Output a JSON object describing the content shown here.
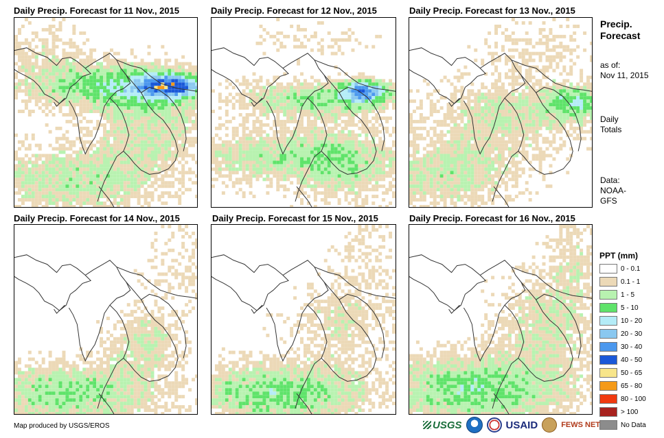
{
  "panels": [
    {
      "title": "Daily Precip. Forecast for 11 Nov., 2015"
    },
    {
      "title": "Daily Precip. Forecast for 12 Nov., 2015"
    },
    {
      "title": "Daily Precip. Forecast for 13 Nov., 2015"
    },
    {
      "title": "Daily Precip. Forecast for 14 Nov., 2015"
    },
    {
      "title": "Daily Precip. Forecast for 15 Nov., 2015"
    },
    {
      "title": "Daily Precip. Forecast for 16 Nov., 2015"
    }
  ],
  "side": {
    "title_line1": "Precip.",
    "title_line2": "Forecast",
    "asof_line1": "as of:",
    "asof_line2": "Nov 11, 2015",
    "totals_line1": "Daily",
    "totals_line2": "Totals",
    "data_line1": "Data:",
    "data_line2": "NOAA-",
    "data_line3": "GFS"
  },
  "legend": {
    "title": "PPT (mm)",
    "items": [
      {
        "label": "0 - 0.1",
        "color": "#ffffff"
      },
      {
        "label": "0.1 - 1",
        "color": "#ecd9b7"
      },
      {
        "label": "1 - 5",
        "color": "#b8f2b0"
      },
      {
        "label": "5 - 10",
        "color": "#5fe36a"
      },
      {
        "label": "10 - 20",
        "color": "#b4ecf7"
      },
      {
        "label": "20 - 30",
        "color": "#8ac8f0"
      },
      {
        "label": "30 - 40",
        "color": "#4b98ee"
      },
      {
        "label": "40 - 50",
        "color": "#1a58d8"
      },
      {
        "label": "50 - 65",
        "color": "#f7e58a"
      },
      {
        "label": "65 - 80",
        "color": "#f59a18"
      },
      {
        "label": "80 - 100",
        "color": "#f03a10"
      },
      {
        "label": "> 100",
        "color": "#a8221e"
      },
      {
        "label": "No Data",
        "color": "#8c8c8c"
      }
    ]
  },
  "credit": "Map produced by USGS/EROS",
  "logos": {
    "usgs": "USGS",
    "noaa": "NOAA",
    "usaid": "USAID",
    "fews": "FEWS NET"
  }
}
